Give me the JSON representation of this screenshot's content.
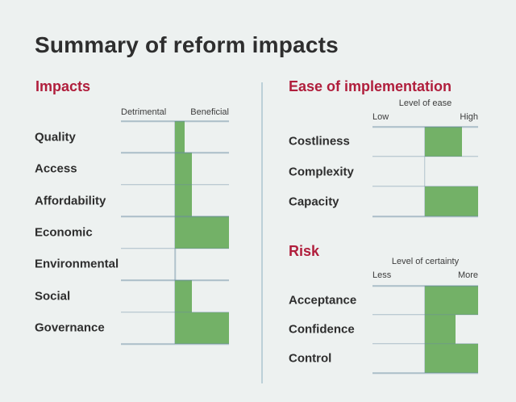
{
  "page": {
    "title": "Summary of reform impacts"
  },
  "theme": {
    "background": "#edf1f0",
    "title_color": "#2e2e2e",
    "heading_color": "#b01e3c",
    "bar_color": "#73b167",
    "grid_color": "#b5c9d2",
    "divider_color": "#bcd0d8",
    "label_color": "#2e2e2e"
  },
  "sections": {
    "impacts": {
      "heading": "Impacts",
      "scale_left": "Detrimental",
      "scale_right": "Beneficial"
    },
    "ease": {
      "heading": "Ease of implementation",
      "scale_title": "Level of ease",
      "scale_left": "Low",
      "scale_right": "High"
    },
    "risk": {
      "heading": "Risk",
      "scale_title": "Level of certainty",
      "scale_left": "Less",
      "scale_right": "More"
    }
  },
  "chart_data": [
    {
      "id": "impacts",
      "type": "bar",
      "title": "Impacts",
      "orientation": "horizontal",
      "axis": {
        "left_label": "Detrimental",
        "right_label": "Beneficial",
        "baseline": "center",
        "range": [
          0,
          1
        ]
      },
      "value_scale": "fraction of axis half-width; all bars extend right of center baseline toward Beneficial",
      "categories": [
        "Quality",
        "Access",
        "Affordability",
        "Economic",
        "Environmental",
        "Social",
        "Governance"
      ],
      "values": [
        0.18,
        0.32,
        0.32,
        1.0,
        0,
        0.32,
        1.0
      ],
      "grid": true,
      "legend": false
    },
    {
      "id": "ease",
      "type": "bar",
      "title": "Ease of implementation",
      "orientation": "horizontal",
      "axis": {
        "title": "Level of ease",
        "left_label": "Low",
        "right_label": "High",
        "baseline": "center",
        "range": [
          0,
          1
        ]
      },
      "value_scale": "fraction of axis half-width; all bars extend right of center baseline toward High",
      "categories": [
        "Costliness",
        "Complexity",
        "Capacity"
      ],
      "values": [
        0.7,
        0,
        1.0
      ],
      "grid": true,
      "legend": false
    },
    {
      "id": "risk",
      "type": "bar",
      "title": "Risk",
      "orientation": "horizontal",
      "axis": {
        "title": "Level of certainty",
        "left_label": "Less",
        "right_label": "More",
        "baseline": "center",
        "range": [
          0,
          1
        ]
      },
      "value_scale": "fraction of axis half-width; all bars extend right of center baseline toward More",
      "categories": [
        "Acceptance",
        "Confidence",
        "Control"
      ],
      "values": [
        1.0,
        0.58,
        1.0
      ],
      "grid": true,
      "legend": false
    }
  ]
}
